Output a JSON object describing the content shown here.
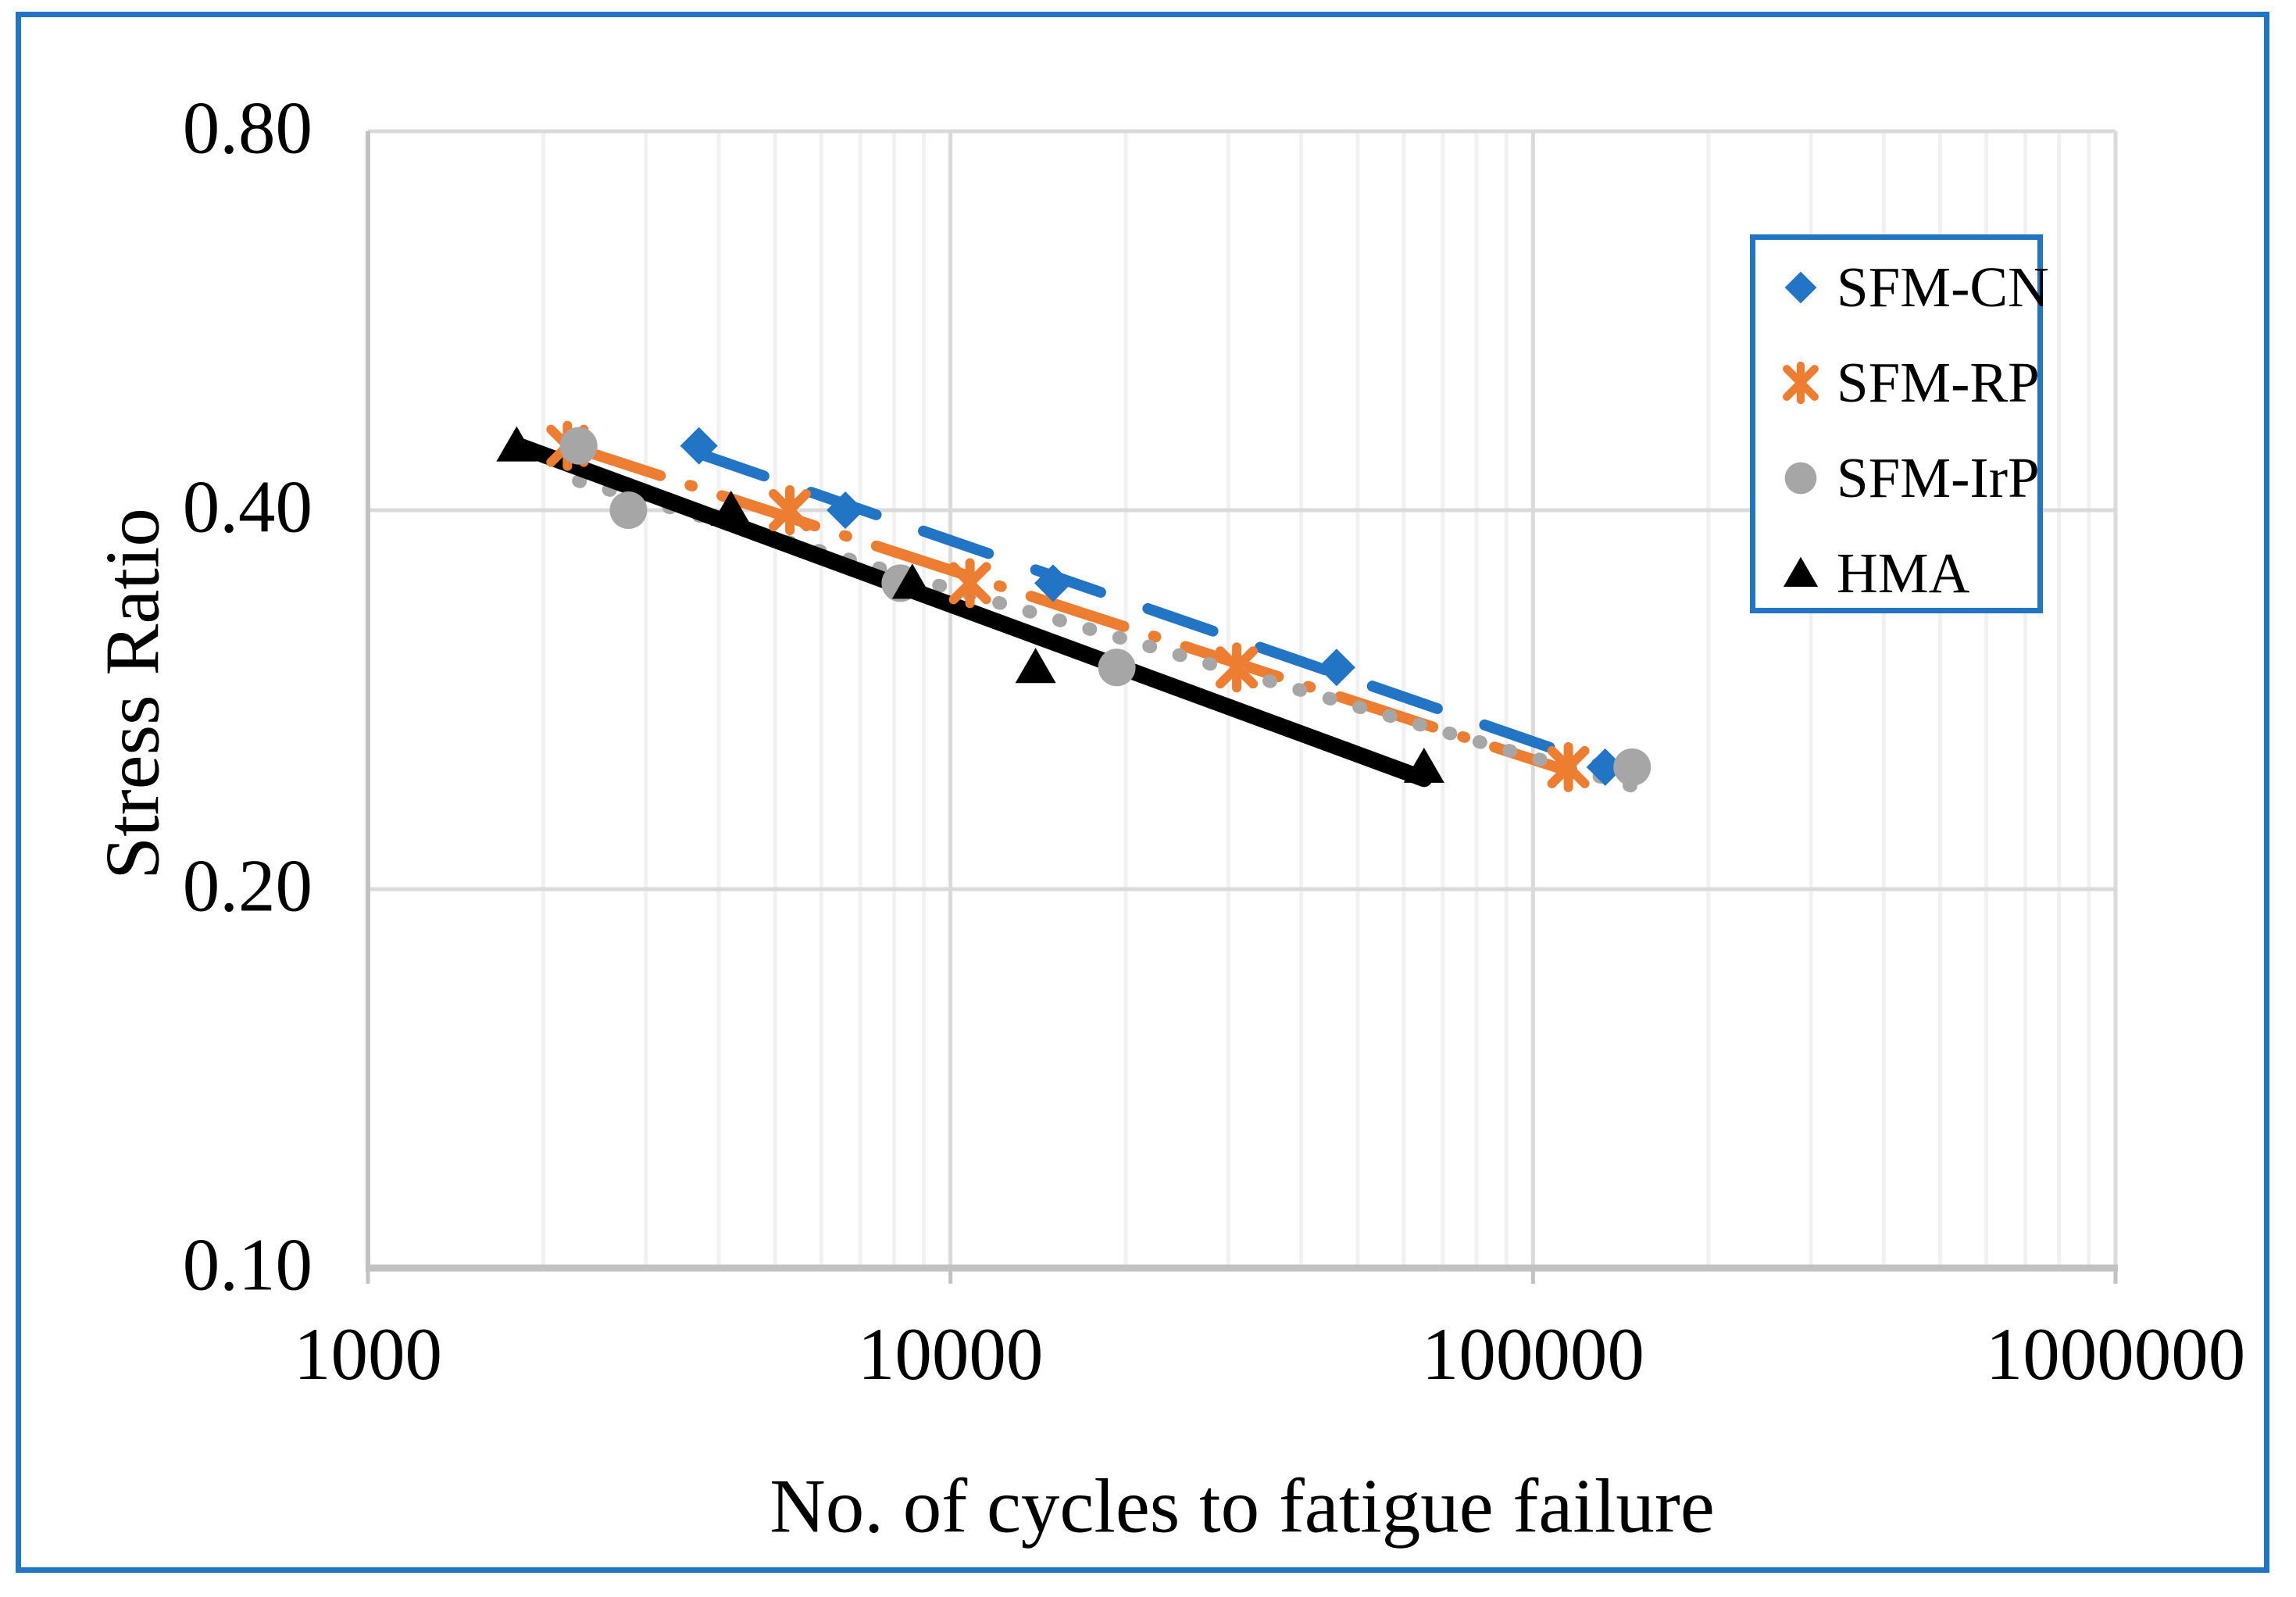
{
  "chart_data": {
    "type": "scatter",
    "title": "",
    "xlabel": "No. of cycles to fatigue failure",
    "ylabel": "Stress Ratio",
    "x_scale": "log",
    "y_scale": "log",
    "xlim": [
      1000,
      1000000
    ],
    "ylim": [
      0.1,
      0.8
    ],
    "x_ticks": [
      1000,
      10000,
      100000,
      1000000
    ],
    "x_tick_labels": [
      "1000",
      "10000",
      "100000",
      "1000000"
    ],
    "y_ticks": [
      0.8,
      0.4,
      0.2,
      0.1
    ],
    "y_tick_labels": [
      "0.80",
      "0.40",
      "0.20",
      "0.10"
    ],
    "grid": "x-major+x-minor+y-major",
    "legend_position": "upper-right",
    "series": [
      {
        "name": "SFM-CN",
        "color": "#2175C4",
        "marker": "diamond",
        "line_style": "dashed",
        "points": [
          [
            3700,
            0.45
          ],
          [
            6600,
            0.4
          ],
          [
            15000,
            0.35
          ],
          [
            46000,
            0.3
          ],
          [
            133000,
            0.25
          ]
        ]
      },
      {
        "name": "SFM-RP",
        "color": "#ED7D31",
        "marker": "asterisk",
        "line_style": "dash-dot",
        "points": [
          [
            2200,
            0.45
          ],
          [
            5300,
            0.4
          ],
          [
            10800,
            0.35
          ],
          [
            31000,
            0.3
          ],
          [
            115000,
            0.25
          ]
        ]
      },
      {
        "name": "SFM-IrP",
        "color": "#A6A6A6",
        "marker": "circle",
        "line_style": "dotted",
        "points": [
          [
            2300,
            0.45
          ],
          [
            2800,
            0.4
          ],
          [
            8200,
            0.35
          ],
          [
            19300,
            0.3
          ],
          [
            148000,
            0.25
          ]
        ]
      },
      {
        "name": "HMA",
        "color": "#000000",
        "marker": "triangle",
        "line_style": "solid",
        "points": [
          [
            1800,
            0.45
          ],
          [
            4200,
            0.4
          ],
          [
            8600,
            0.35
          ],
          [
            14000,
            0.3
          ],
          [
            65000,
            0.25
          ]
        ]
      }
    ],
    "trendlines": "log-log linear fit per series spanning each series x-range"
  },
  "colors": {
    "frame_border": "#2175C4",
    "legend_border": "#2175C4",
    "gridline_major": "#DADADA",
    "gridline_minor": "#F1F1F1",
    "axis_line": "#C2C2C2"
  }
}
